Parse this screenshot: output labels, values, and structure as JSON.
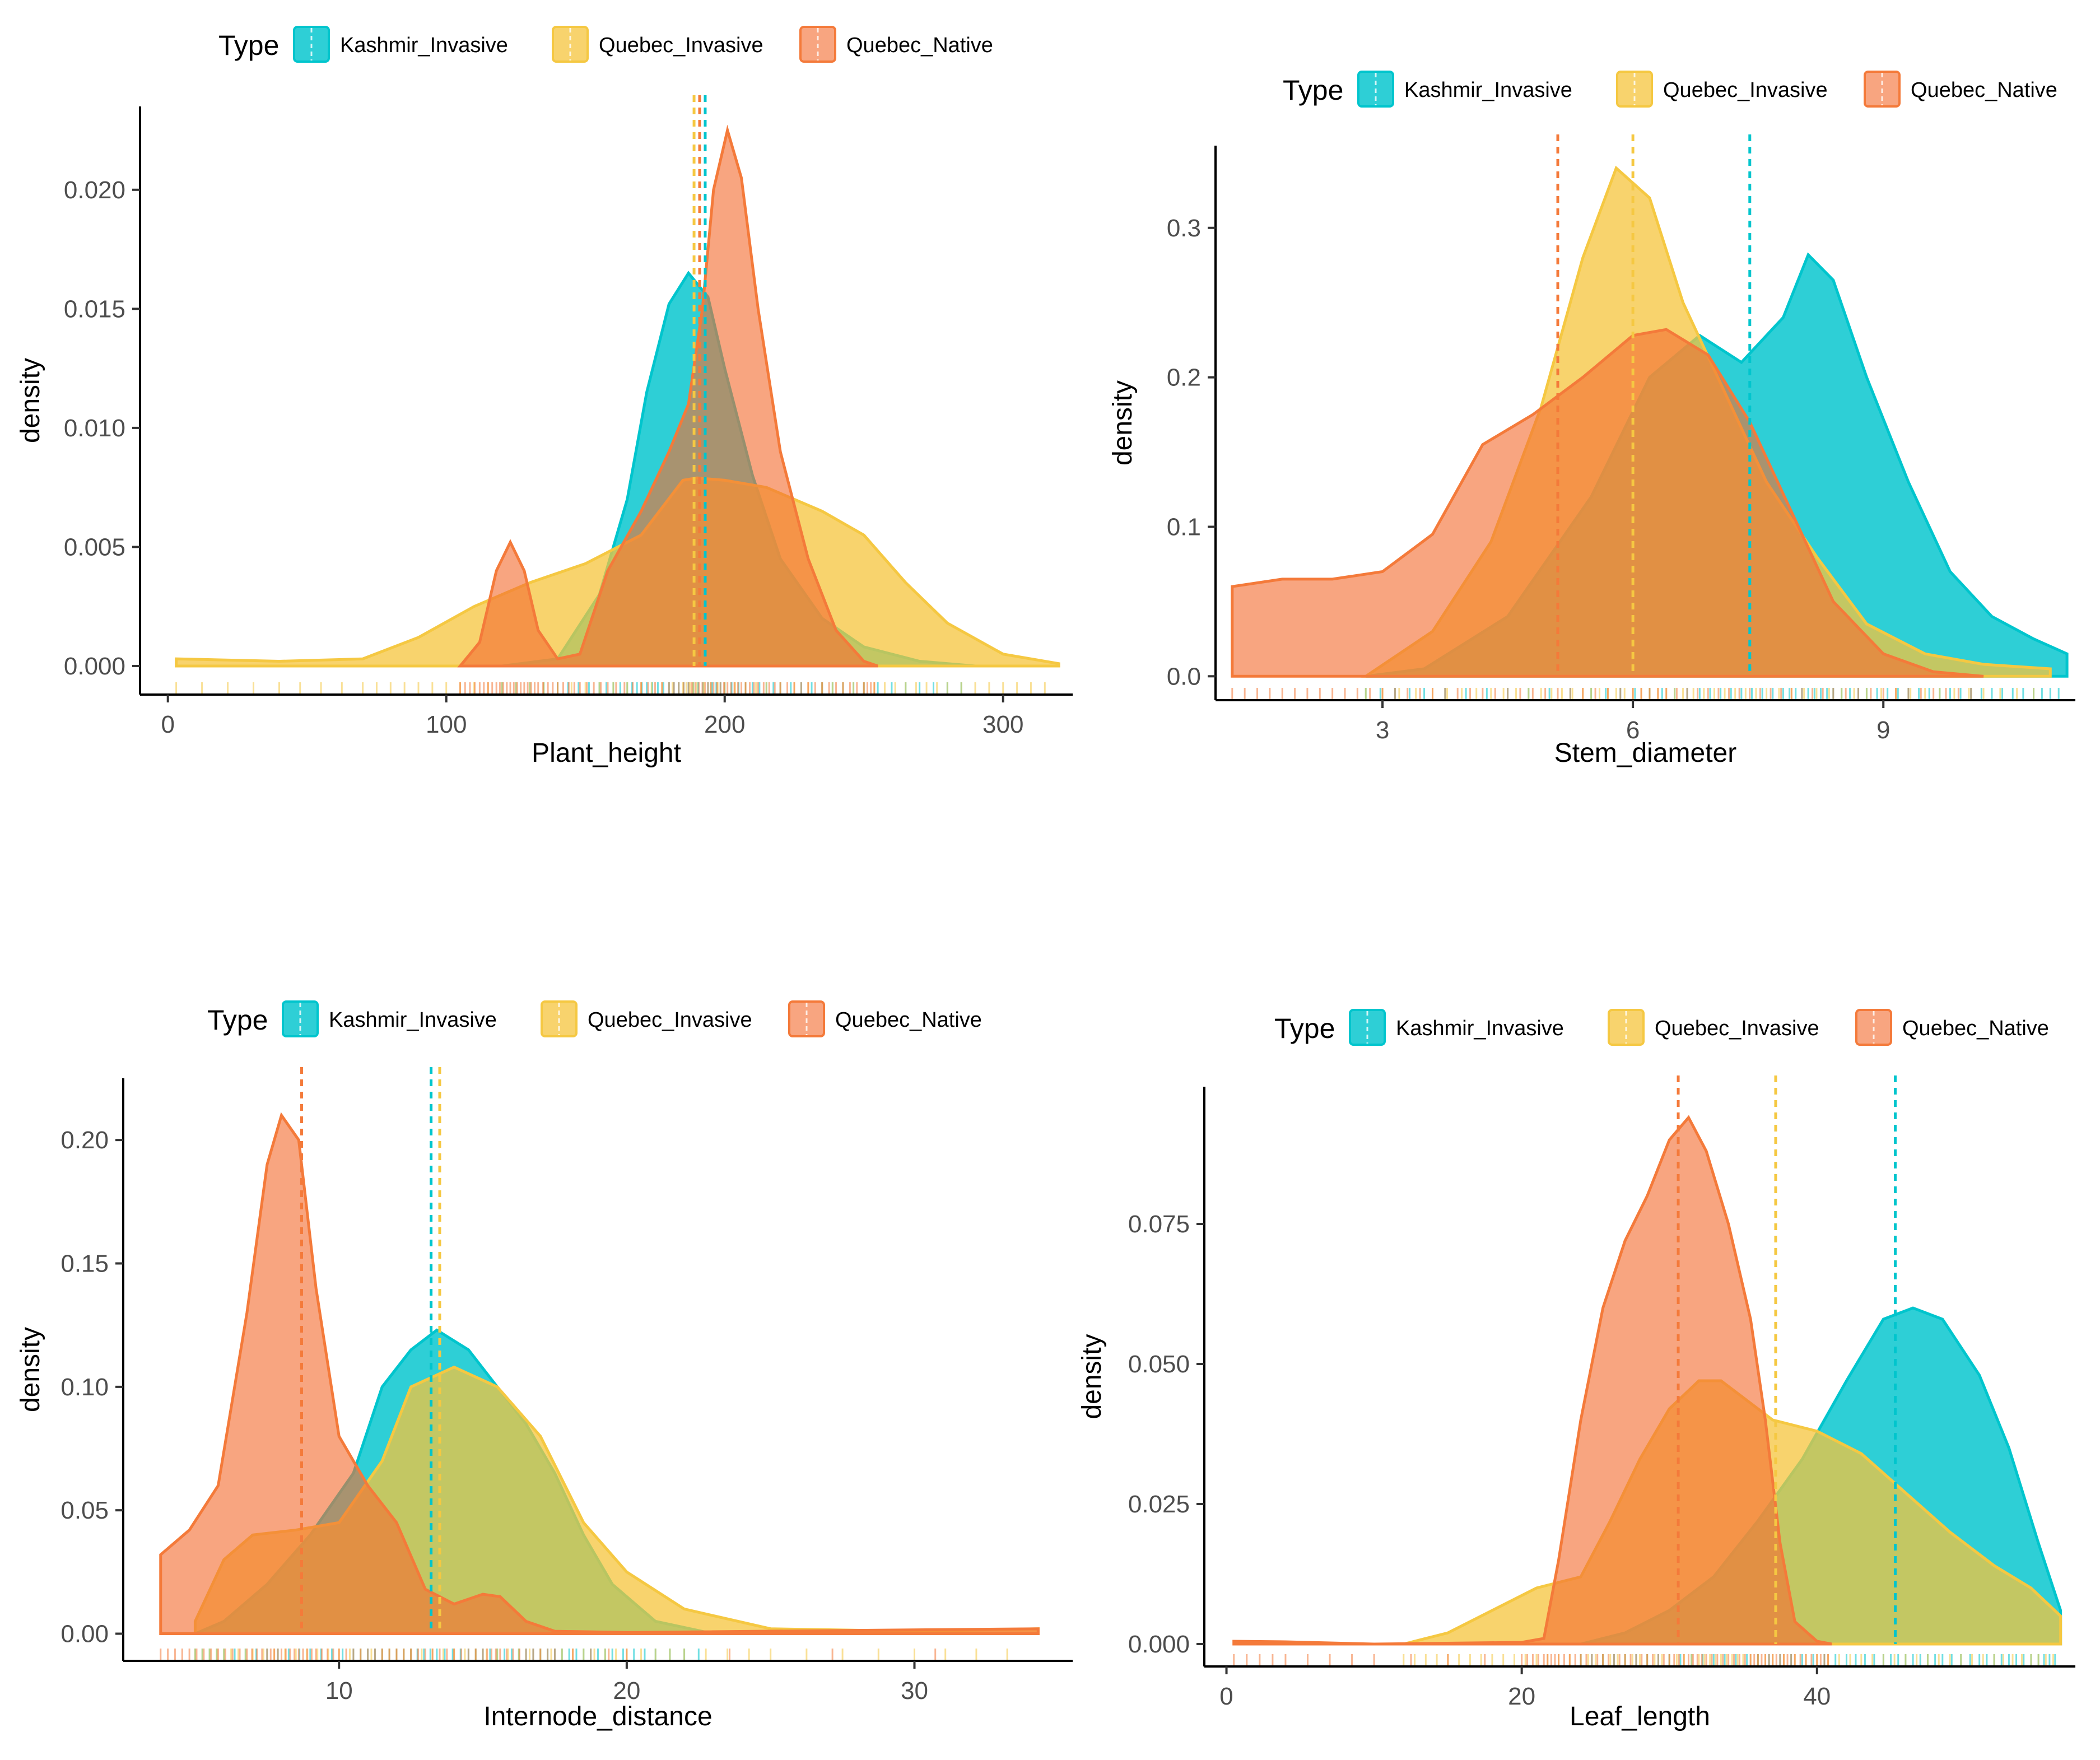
{
  "legend": {
    "title": "Type",
    "entries": [
      {
        "label": "Kashmir_Invasive",
        "color": "#00C5CD"
      },
      {
        "label": "Quebec_Invasive",
        "color": "#F5C842"
      },
      {
        "label": "Quebec_Native",
        "color": "#F47A3A"
      }
    ]
  },
  "chart_data": [
    {
      "type": "area",
      "xlabel": "Plant_height",
      "ylabel": "density",
      "xlim": [
        -10,
        325
      ],
      "ylim": [
        -0.0012,
        0.0235
      ],
      "xticks": [
        0,
        100,
        200,
        300
      ],
      "yticks": [
        0.0,
        0.005,
        0.01,
        0.015,
        0.02
      ],
      "ytick_labels": [
        "0.000",
        "0.005",
        "0.010",
        "0.015",
        "0.020"
      ],
      "grid": false,
      "legend_position": "top",
      "series": [
        {
          "name": "Kashmir_Invasive",
          "means": 193,
          "points": [
            [
              120,
              0
            ],
            [
              140,
              0.0003
            ],
            [
              155,
              0.003
            ],
            [
              165,
              0.007
            ],
            [
              172,
              0.0115
            ],
            [
              180,
              0.0152
            ],
            [
              187,
              0.0165
            ],
            [
              194,
              0.0155
            ],
            [
              200,
              0.0125
            ],
            [
              210,
              0.008
            ],
            [
              220,
              0.0045
            ],
            [
              235,
              0.002
            ],
            [
              250,
              0.0008
            ],
            [
              270,
              0.0002
            ],
            [
              290,
              0
            ]
          ]
        },
        {
          "name": "Quebec_Invasive",
          "means": 189,
          "points": [
            [
              3,
              0.0003
            ],
            [
              40,
              0.0002
            ],
            [
              70,
              0.0003
            ],
            [
              90,
              0.0012
            ],
            [
              110,
              0.0025
            ],
            [
              130,
              0.0035
            ],
            [
              150,
              0.0043
            ],
            [
              170,
              0.0055
            ],
            [
              185,
              0.0078
            ],
            [
              190,
              0.0079
            ],
            [
              200,
              0.0078
            ],
            [
              215,
              0.0075
            ],
            [
              235,
              0.0065
            ],
            [
              250,
              0.0055
            ],
            [
              265,
              0.0035
            ],
            [
              280,
              0.0018
            ],
            [
              300,
              0.0005
            ],
            [
              320,
              0.0001
            ]
          ]
        },
        {
          "name": "Quebec_Native",
          "means": 191,
          "points": [
            [
              105,
              0
            ],
            [
              112,
              0.001
            ],
            [
              118,
              0.004
            ],
            [
              123,
              0.0052
            ],
            [
              128,
              0.004
            ],
            [
              133,
              0.0015
            ],
            [
              140,
              0.0003
            ],
            [
              148,
              0.0005
            ],
            [
              158,
              0.004
            ],
            [
              170,
              0.0065
            ],
            [
              180,
              0.009
            ],
            [
              187,
              0.011
            ],
            [
              192,
              0.015
            ],
            [
              196,
              0.02
            ],
            [
              201,
              0.0225
            ],
            [
              206,
              0.0205
            ],
            [
              212,
              0.015
            ],
            [
              220,
              0.009
            ],
            [
              230,
              0.0045
            ],
            [
              240,
              0.0015
            ],
            [
              250,
              0.0002
            ],
            [
              255,
              0
            ]
          ]
        }
      ]
    },
    {
      "type": "area",
      "xlabel": "Stem_diameter",
      "ylabel": "density",
      "xlim": [
        1.0,
        11.3
      ],
      "ylim": [
        -0.016,
        0.355
      ],
      "xticks": [
        3,
        6,
        9
      ],
      "yticks": [
        0.0,
        0.1,
        0.2,
        0.3
      ],
      "ytick_labels": [
        "0.0",
        "0.1",
        "0.2",
        "0.3"
      ],
      "grid": false,
      "legend_position": "top",
      "series": [
        {
          "name": "Kashmir_Invasive",
          "means": 7.4,
          "points": [
            [
              2.8,
              0
            ],
            [
              3.5,
              0.005
            ],
            [
              4.5,
              0.04
            ],
            [
              5.5,
              0.12
            ],
            [
              6.2,
              0.2
            ],
            [
              6.8,
              0.228
            ],
            [
              7.3,
              0.21
            ],
            [
              7.8,
              0.24
            ],
            [
              8.1,
              0.282
            ],
            [
              8.4,
              0.265
            ],
            [
              8.8,
              0.2
            ],
            [
              9.3,
              0.13
            ],
            [
              9.8,
              0.07
            ],
            [
              10.3,
              0.04
            ],
            [
              10.8,
              0.025
            ],
            [
              11.2,
              0.015
            ]
          ]
        },
        {
          "name": "Quebec_Invasive",
          "means": 6.0,
          "points": [
            [
              2.8,
              0
            ],
            [
              3.6,
              0.03
            ],
            [
              4.3,
              0.09
            ],
            [
              4.9,
              0.18
            ],
            [
              5.4,
              0.28
            ],
            [
              5.8,
              0.34
            ],
            [
              6.2,
              0.32
            ],
            [
              6.6,
              0.25
            ],
            [
              7.1,
              0.19
            ],
            [
              7.6,
              0.13
            ],
            [
              8.2,
              0.08
            ],
            [
              8.8,
              0.035
            ],
            [
              9.5,
              0.015
            ],
            [
              10.2,
              0.008
            ],
            [
              11,
              0.005
            ]
          ]
        },
        {
          "name": "Quebec_Native",
          "means": 5.1,
          "points": [
            [
              1.2,
              0.06
            ],
            [
              1.8,
              0.065
            ],
            [
              2.4,
              0.065
            ],
            [
              3.0,
              0.07
            ],
            [
              3.6,
              0.095
            ],
            [
              4.2,
              0.155
            ],
            [
              4.8,
              0.175
            ],
            [
              5.4,
              0.2
            ],
            [
              6.0,
              0.228
            ],
            [
              6.4,
              0.232
            ],
            [
              6.9,
              0.215
            ],
            [
              7.4,
              0.17
            ],
            [
              7.9,
              0.11
            ],
            [
              8.4,
              0.05
            ],
            [
              9.0,
              0.015
            ],
            [
              9.6,
              0.003
            ],
            [
              10.2,
              0
            ]
          ]
        }
      ]
    },
    {
      "type": "area",
      "xlabel": "Internode_distance",
      "ylabel": "density",
      "xlim": [
        2.5,
        35.5
      ],
      "ylim": [
        -0.011,
        0.225
      ],
      "xticks": [
        10,
        20,
        30
      ],
      "yticks": [
        0.0,
        0.05,
        0.1,
        0.15,
        0.2
      ],
      "ytick_labels": [
        "0.00",
        "0.05",
        "0.10",
        "0.15",
        "0.20"
      ],
      "grid": false,
      "legend_position": "top",
      "series": [
        {
          "name": "Kashmir_Invasive",
          "means": 13.2,
          "points": [
            [
              5,
              0
            ],
            [
              6,
              0.005
            ],
            [
              7.5,
              0.02
            ],
            [
              9,
              0.04
            ],
            [
              10.5,
              0.065
            ],
            [
              11.5,
              0.1
            ],
            [
              12.5,
              0.115
            ],
            [
              13.4,
              0.123
            ],
            [
              14.5,
              0.115
            ],
            [
              15.5,
              0.1
            ],
            [
              16.5,
              0.085
            ],
            [
              17.5,
              0.065
            ],
            [
              18.5,
              0.04
            ],
            [
              19.5,
              0.02
            ],
            [
              21,
              0.005
            ],
            [
              23,
              0
            ]
          ]
        },
        {
          "name": "Quebec_Invasive",
          "means": 13.5,
          "points": [
            [
              5,
              0.005
            ],
            [
              6,
              0.03
            ],
            [
              7,
              0.04
            ],
            [
              8.5,
              0.042
            ],
            [
              10,
              0.045
            ],
            [
              11.5,
              0.07
            ],
            [
              12.5,
              0.1
            ],
            [
              14,
              0.108
            ],
            [
              15.5,
              0.1
            ],
            [
              17,
              0.08
            ],
            [
              18.5,
              0.045
            ],
            [
              20,
              0.025
            ],
            [
              22,
              0.01
            ],
            [
              25,
              0.002
            ],
            [
              30,
              0.001
            ],
            [
              34.3,
              0.002
            ]
          ]
        },
        {
          "name": "Quebec_Native",
          "means": 8.7,
          "points": [
            [
              3.8,
              0.032
            ],
            [
              4.8,
              0.042
            ],
            [
              5.8,
              0.06
            ],
            [
              6.8,
              0.13
            ],
            [
              7.5,
              0.19
            ],
            [
              8.0,
              0.21
            ],
            [
              8.6,
              0.2
            ],
            [
              9.2,
              0.14
            ],
            [
              10,
              0.08
            ],
            [
              11,
              0.06
            ],
            [
              12,
              0.045
            ],
            [
              13,
              0.018
            ],
            [
              14,
              0.012
            ],
            [
              15,
              0.016
            ],
            [
              15.6,
              0.015
            ],
            [
              16.5,
              0.005
            ],
            [
              17.5,
              0.001
            ],
            [
              20,
              0.0005
            ],
            [
              34.3,
              0.002
            ]
          ]
        }
      ]
    },
    {
      "type": "area",
      "xlabel": "Leaf_length",
      "ylabel": "density",
      "xlim": [
        -1.5,
        57.5
      ],
      "ylim": [
        -0.004,
        0.0995
      ],
      "xticks": [
        0,
        20,
        40
      ],
      "yticks": [
        0.0,
        0.025,
        0.05,
        0.075
      ],
      "ytick_labels": [
        "0.000",
        "0.025",
        "0.050",
        "0.075"
      ],
      "grid": false,
      "legend_position": "top",
      "series": [
        {
          "name": "Kashmir_Invasive",
          "means": 45.3,
          "points": [
            [
              24,
              0
            ],
            [
              27,
              0.002
            ],
            [
              30,
              0.006
            ],
            [
              33,
              0.012
            ],
            [
              36,
              0.022
            ],
            [
              39,
              0.033
            ],
            [
              42,
              0.047
            ],
            [
              44.5,
              0.058
            ],
            [
              46.5,
              0.06
            ],
            [
              48.5,
              0.058
            ],
            [
              51,
              0.048
            ],
            [
              53,
              0.035
            ],
            [
              55,
              0.018
            ],
            [
              56.5,
              0.006
            ]
          ]
        },
        {
          "name": "Quebec_Invasive",
          "means": 37.2,
          "points": [
            [
              12,
              0
            ],
            [
              15,
              0.002
            ],
            [
              18,
              0.006
            ],
            [
              21,
              0.01
            ],
            [
              24,
              0.012
            ],
            [
              26,
              0.022
            ],
            [
              28,
              0.033
            ],
            [
              30,
              0.042
            ],
            [
              32,
              0.047
            ],
            [
              33.5,
              0.047
            ],
            [
              35,
              0.044
            ],
            [
              37,
              0.04
            ],
            [
              40,
              0.038
            ],
            [
              43,
              0.034
            ],
            [
              46,
              0.027
            ],
            [
              49,
              0.02
            ],
            [
              52,
              0.014
            ],
            [
              54.5,
              0.01
            ],
            [
              56.5,
              0.005
            ]
          ]
        },
        {
          "name": "Quebec_Native",
          "means": 30.6,
          "points": [
            [
              0.5,
              0.0005
            ],
            [
              4,
              0.0004
            ],
            [
              10,
              0
            ],
            [
              20,
              0.0003
            ],
            [
              21.5,
              0.001
            ],
            [
              22.5,
              0.015
            ],
            [
              24,
              0.04
            ],
            [
              25.5,
              0.06
            ],
            [
              27,
              0.072
            ],
            [
              28.5,
              0.08
            ],
            [
              30,
              0.09
            ],
            [
              31.3,
              0.094
            ],
            [
              32.5,
              0.088
            ],
            [
              34,
              0.075
            ],
            [
              35.5,
              0.058
            ],
            [
              36.5,
              0.04
            ],
            [
              37.5,
              0.018
            ],
            [
              38.5,
              0.004
            ],
            [
              40,
              0.0005
            ],
            [
              41,
              0
            ]
          ]
        }
      ]
    }
  ]
}
